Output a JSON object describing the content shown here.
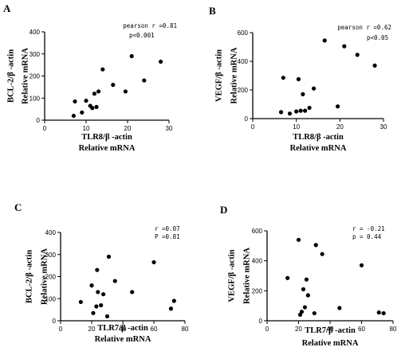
{
  "chart_data": [
    {
      "type": "scatter",
      "panel_label": "A",
      "xlabel": [
        "TLR8/β -actin",
        "Relative mRNA"
      ],
      "ylabel": [
        "BCL-2/β -actin",
        "Relative mRNA"
      ],
      "xlim": [
        0,
        30
      ],
      "ylim": [
        0,
        400
      ],
      "xticks": [
        "0",
        "10",
        "20",
        "30"
      ],
      "yticks": [
        "0",
        "100",
        "200",
        "300",
        "400"
      ],
      "annotation": [
        "pearson r =0.81",
        "p<0.001"
      ],
      "points": [
        {
          "x": 7,
          "y": 20
        },
        {
          "x": 7.3,
          "y": 85
        },
        {
          "x": 9,
          "y": 35
        },
        {
          "x": 10,
          "y": 88
        },
        {
          "x": 11,
          "y": 65
        },
        {
          "x": 11.5,
          "y": 55
        },
        {
          "x": 12,
          "y": 120
        },
        {
          "x": 12.5,
          "y": 60
        },
        {
          "x": 13,
          "y": 130
        },
        {
          "x": 14,
          "y": 230
        },
        {
          "x": 16.5,
          "y": 160
        },
        {
          "x": 19.5,
          "y": 130
        },
        {
          "x": 21,
          "y": 290
        },
        {
          "x": 24,
          "y": 180
        },
        {
          "x": 28,
          "y": 265
        }
      ]
    },
    {
      "type": "scatter",
      "panel_label": "B",
      "xlabel": [
        "TLR8/β -actin",
        "Relative mRNA"
      ],
      "ylabel": [
        "VEGF/β -actin",
        "Relative mRNA"
      ],
      "xlim": [
        0,
        30
      ],
      "ylim": [
        0,
        600
      ],
      "xticks": [
        "0",
        "10",
        "20",
        "30"
      ],
      "yticks": [
        "0",
        "200",
        "400",
        "600"
      ],
      "annotation": [
        "pearson r =0.62",
        "p<0.05"
      ],
      "points": [
        {
          "x": 6.5,
          "y": 45
        },
        {
          "x": 7,
          "y": 285
        },
        {
          "x": 8.5,
          "y": 35
        },
        {
          "x": 10,
          "y": 50
        },
        {
          "x": 10.5,
          "y": 275
        },
        {
          "x": 11,
          "y": 55
        },
        {
          "x": 11.5,
          "y": 170
        },
        {
          "x": 12,
          "y": 55
        },
        {
          "x": 13,
          "y": 75
        },
        {
          "x": 14,
          "y": 210
        },
        {
          "x": 16.5,
          "y": 545
        },
        {
          "x": 19.5,
          "y": 85
        },
        {
          "x": 21,
          "y": 505
        },
        {
          "x": 24,
          "y": 445
        },
        {
          "x": 28,
          "y": 370
        }
      ]
    },
    {
      "type": "scatter",
      "panel_label": "C",
      "xlabel": [
        "TLR7/β -actin",
        "Relative mRNA"
      ],
      "ylabel": [
        "BCL-2/β -actin",
        "Relative mRNA"
      ],
      "xlim": [
        0,
        80
      ],
      "ylim": [
        0,
        400
      ],
      "xticks": [
        "0",
        "20",
        "40",
        "60",
        "80"
      ],
      "yticks": [
        "0",
        "100",
        "200",
        "300",
        "400"
      ],
      "annotation": [
        "r =0.07",
        "P =0.81"
      ],
      "points": [
        {
          "x": 13,
          "y": 85
        },
        {
          "x": 20,
          "y": 160
        },
        {
          "x": 21,
          "y": 35
        },
        {
          "x": 23,
          "y": 65
        },
        {
          "x": 23.5,
          "y": 230
        },
        {
          "x": 24,
          "y": 130
        },
        {
          "x": 26,
          "y": 70
        },
        {
          "x": 27.5,
          "y": 120
        },
        {
          "x": 30,
          "y": 20
        },
        {
          "x": 31,
          "y": 290
        },
        {
          "x": 35,
          "y": 180
        },
        {
          "x": 46,
          "y": 130
        },
        {
          "x": 60,
          "y": 265
        },
        {
          "x": 71,
          "y": 55
        },
        {
          "x": 73,
          "y": 90
        }
      ]
    },
    {
      "type": "scatter",
      "panel_label": "D",
      "xlabel": [
        "TLR7/β -actin",
        "Relative mRNA"
      ],
      "ylabel": [
        "VEGF/β -actin",
        "Relative mRNA"
      ],
      "xlim": [
        0,
        80
      ],
      "ylim": [
        0,
        600
      ],
      "xticks": [
        "0",
        "20",
        "40",
        "60",
        "80"
      ],
      "yticks": [
        "0",
        "200",
        "400",
        "600"
      ],
      "annotation": [
        "r = -0.21",
        "p = 0.44"
      ],
      "points": [
        {
          "x": 13,
          "y": 285
        },
        {
          "x": 20,
          "y": 540
        },
        {
          "x": 21,
          "y": 40
        },
        {
          "x": 22,
          "y": 60
        },
        {
          "x": 23,
          "y": 210
        },
        {
          "x": 24,
          "y": 90
        },
        {
          "x": 25,
          "y": 275
        },
        {
          "x": 26,
          "y": 170
        },
        {
          "x": 30,
          "y": 50
        },
        {
          "x": 31,
          "y": 505
        },
        {
          "x": 35,
          "y": 445
        },
        {
          "x": 46,
          "y": 85
        },
        {
          "x": 60,
          "y": 370
        },
        {
          "x": 71,
          "y": 55
        },
        {
          "x": 74,
          "y": 50
        }
      ]
    }
  ]
}
